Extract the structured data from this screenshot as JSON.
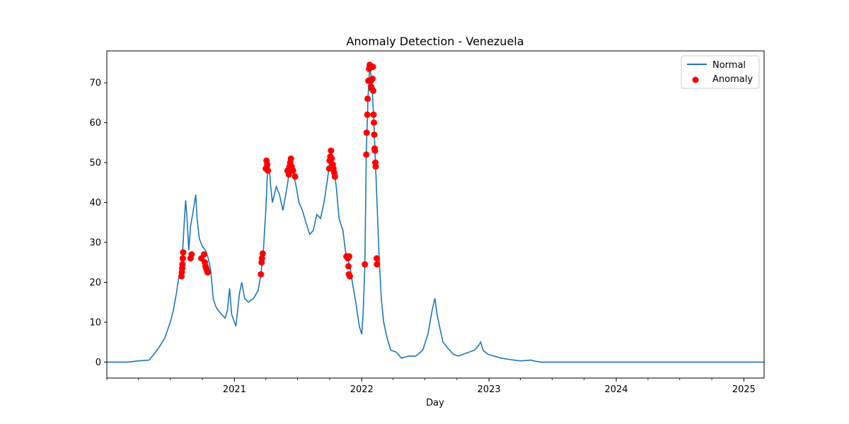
{
  "chart_data": {
    "type": "line",
    "title": "Anomaly Detection - Venezuela",
    "xlabel": "Day",
    "ylabel": "",
    "xlim": [
      "2020-01-01",
      "2025-02-28"
    ],
    "ylim": [
      -4,
      78
    ],
    "x_ticks": [
      "2021",
      "2022",
      "2023",
      "2024",
      "2025"
    ],
    "y_ticks": [
      0,
      10,
      20,
      30,
      40,
      50,
      60,
      70
    ],
    "grid": false,
    "legend": "top-right",
    "colors": {
      "normal": "#1f77b4",
      "anomaly": "#ff0000"
    },
    "series": [
      {
        "name": "Normal",
        "kind": "line",
        "points": [
          [
            "2020-01-01",
            0
          ],
          [
            "2020-03-01",
            0
          ],
          [
            "2020-04-01",
            0.3
          ],
          [
            "2020-05-01",
            0.5
          ],
          [
            "2020-05-20",
            2.5
          ],
          [
            "2020-06-01",
            4
          ],
          [
            "2020-06-15",
            6
          ],
          [
            "2020-07-01",
            10
          ],
          [
            "2020-07-10",
            13
          ],
          [
            "2020-07-18",
            17
          ],
          [
            "2020-07-25",
            21
          ],
          [
            "2020-08-01",
            24
          ],
          [
            "2020-08-05",
            27
          ],
          [
            "2020-08-10",
            35
          ],
          [
            "2020-08-14",
            40.5
          ],
          [
            "2020-08-18",
            36
          ],
          [
            "2020-08-23",
            28
          ],
          [
            "2020-08-28",
            34
          ],
          [
            "2020-09-05",
            38
          ],
          [
            "2020-09-12",
            42
          ],
          [
            "2020-09-16",
            36
          ],
          [
            "2020-09-22",
            31
          ],
          [
            "2020-10-01",
            29
          ],
          [
            "2020-10-10",
            28
          ],
          [
            "2020-10-18",
            26
          ],
          [
            "2020-10-25",
            23
          ],
          [
            "2020-11-01",
            16
          ],
          [
            "2020-11-08",
            14
          ],
          [
            "2020-11-15",
            13
          ],
          [
            "2020-11-25",
            12
          ],
          [
            "2020-12-05",
            11
          ],
          [
            "2020-12-12",
            13
          ],
          [
            "2020-12-18",
            18.5
          ],
          [
            "2020-12-24",
            12
          ],
          [
            "2021-01-01",
            10
          ],
          [
            "2021-01-05",
            9
          ],
          [
            "2021-01-15",
            17
          ],
          [
            "2021-01-22",
            20
          ],
          [
            "2021-01-30",
            16
          ],
          [
            "2021-02-10",
            15
          ],
          [
            "2021-02-25",
            16
          ],
          [
            "2021-03-10",
            18
          ],
          [
            "2021-03-18",
            22
          ],
          [
            "2021-03-25",
            28
          ],
          [
            "2021-04-01",
            38
          ],
          [
            "2021-04-06",
            48
          ],
          [
            "2021-04-10",
            50
          ],
          [
            "2021-04-15",
            44
          ],
          [
            "2021-04-20",
            40
          ],
          [
            "2021-05-01",
            44
          ],
          [
            "2021-05-10",
            42
          ],
          [
            "2021-05-20",
            38
          ],
          [
            "2021-06-01",
            44
          ],
          [
            "2021-06-08",
            48
          ],
          [
            "2021-06-12",
            50.5
          ],
          [
            "2021-06-18",
            47
          ],
          [
            "2021-06-25",
            45
          ],
          [
            "2021-07-05",
            40
          ],
          [
            "2021-07-15",
            38
          ],
          [
            "2021-07-25",
            35
          ],
          [
            "2021-08-05",
            32
          ],
          [
            "2021-08-15",
            33
          ],
          [
            "2021-08-25",
            37
          ],
          [
            "2021-09-05",
            36
          ],
          [
            "2021-09-15",
            40
          ],
          [
            "2021-09-25",
            46
          ],
          [
            "2021-10-01",
            50
          ],
          [
            "2021-10-06",
            53
          ],
          [
            "2021-10-12",
            49
          ],
          [
            "2021-10-20",
            44
          ],
          [
            "2021-10-28",
            36
          ],
          [
            "2021-11-08",
            33
          ],
          [
            "2021-11-15",
            28
          ],
          [
            "2021-11-22",
            26
          ],
          [
            "2021-11-30",
            23
          ],
          [
            "2021-12-05",
            20
          ],
          [
            "2021-12-15",
            15
          ],
          [
            "2021-12-25",
            9
          ],
          [
            "2022-01-01",
            7
          ],
          [
            "2022-01-05",
            12
          ],
          [
            "2022-01-10",
            24
          ],
          [
            "2022-01-14",
            52
          ],
          [
            "2022-01-19",
            66
          ],
          [
            "2022-01-24",
            74.5
          ],
          [
            "2022-01-30",
            70
          ],
          [
            "2022-02-04",
            62
          ],
          [
            "2022-02-08",
            53
          ],
          [
            "2022-02-14",
            40
          ],
          [
            "2022-02-20",
            26
          ],
          [
            "2022-02-26",
            16
          ],
          [
            "2022-03-05",
            10
          ],
          [
            "2022-03-15",
            6
          ],
          [
            "2022-03-25",
            3
          ],
          [
            "2022-04-10",
            2.5
          ],
          [
            "2022-04-25",
            1
          ],
          [
            "2022-05-15",
            1.5
          ],
          [
            "2022-06-05",
            1.5
          ],
          [
            "2022-06-25",
            3
          ],
          [
            "2022-07-10",
            7
          ],
          [
            "2022-07-22",
            13
          ],
          [
            "2022-07-30",
            16
          ],
          [
            "2022-08-05",
            12
          ],
          [
            "2022-08-12",
            9
          ],
          [
            "2022-08-22",
            5
          ],
          [
            "2022-09-05",
            3.5
          ],
          [
            "2022-09-20",
            2
          ],
          [
            "2022-10-05",
            1.5
          ],
          [
            "2022-10-20",
            2
          ],
          [
            "2022-11-05",
            2.5
          ],
          [
            "2022-11-20",
            3
          ],
          [
            "2022-12-01",
            4
          ],
          [
            "2022-12-08",
            5
          ],
          [
            "2022-12-15",
            3
          ],
          [
            "2022-12-28",
            2
          ],
          [
            "2023-01-15",
            1.5
          ],
          [
            "2023-02-05",
            1
          ],
          [
            "2023-03-05",
            0.6
          ],
          [
            "2023-04-01",
            0.3
          ],
          [
            "2023-05-01",
            0.5
          ],
          [
            "2023-05-15",
            0.2
          ],
          [
            "2023-06-01",
            0
          ],
          [
            "2025-02-28",
            0
          ]
        ]
      },
      {
        "name": "Anomaly",
        "kind": "scatter",
        "points": [
          [
            "2020-08-02",
            21.5
          ],
          [
            "2020-08-03",
            22.5
          ],
          [
            "2020-08-04",
            23.5
          ],
          [
            "2020-08-05",
            24.5
          ],
          [
            "2020-08-06",
            26
          ],
          [
            "2020-08-07",
            27.5
          ],
          [
            "2020-08-28",
            26
          ],
          [
            "2020-08-31",
            27
          ],
          [
            "2020-09-28",
            26
          ],
          [
            "2020-10-06",
            27
          ],
          [
            "2020-10-08",
            25
          ],
          [
            "2020-10-10",
            24
          ],
          [
            "2020-10-12",
            23.5
          ],
          [
            "2020-10-14",
            23
          ],
          [
            "2020-10-16",
            22.5
          ],
          [
            "2021-03-18",
            22
          ],
          [
            "2021-03-20",
            25
          ],
          [
            "2021-03-21",
            26
          ],
          [
            "2021-03-23",
            27.2
          ],
          [
            "2021-04-01",
            48.5
          ],
          [
            "2021-04-03",
            50.5
          ],
          [
            "2021-04-05",
            49.5
          ],
          [
            "2021-04-07",
            48
          ],
          [
            "2021-06-02",
            48
          ],
          [
            "2021-06-06",
            47
          ],
          [
            "2021-06-08",
            49
          ],
          [
            "2021-06-10",
            50
          ],
          [
            "2021-06-12",
            51
          ],
          [
            "2021-06-14",
            49
          ],
          [
            "2021-06-18",
            48
          ],
          [
            "2021-06-24",
            46.5
          ],
          [
            "2021-09-30",
            48.5
          ],
          [
            "2021-10-01",
            50.5
          ],
          [
            "2021-10-03",
            51.5
          ],
          [
            "2021-10-05",
            53
          ],
          [
            "2021-10-07",
            51
          ],
          [
            "2021-10-10",
            49.5
          ],
          [
            "2021-10-12",
            48.5
          ],
          [
            "2021-10-14",
            47.5
          ],
          [
            "2021-10-16",
            46.5
          ],
          [
            "2021-11-18",
            26.5
          ],
          [
            "2021-11-22",
            26
          ],
          [
            "2021-11-24",
            24
          ],
          [
            "2021-11-25",
            22
          ],
          [
            "2021-11-28",
            21.5
          ],
          [
            "2021-11-26",
            26.5
          ],
          [
            "2022-01-10",
            24.5
          ],
          [
            "2022-01-14",
            52
          ],
          [
            "2022-01-15",
            57.5
          ],
          [
            "2022-01-17",
            62
          ],
          [
            "2022-01-18",
            66
          ],
          [
            "2022-01-20",
            70.5
          ],
          [
            "2022-01-22",
            73.5
          ],
          [
            "2022-01-24",
            74.5
          ],
          [
            "2022-01-26",
            74
          ],
          [
            "2022-01-27",
            70.5
          ],
          [
            "2022-01-28",
            69
          ],
          [
            "2022-01-30",
            68.5
          ],
          [
            "2022-02-01",
            71
          ],
          [
            "2022-02-02",
            74
          ],
          [
            "2022-02-03",
            68
          ],
          [
            "2022-02-04",
            62
          ],
          [
            "2022-02-05",
            60
          ],
          [
            "2022-02-06",
            57
          ],
          [
            "2022-02-07",
            53.5
          ],
          [
            "2022-02-08",
            53
          ],
          [
            "2022-02-09",
            50
          ],
          [
            "2022-02-10",
            49
          ],
          [
            "2022-02-13",
            26
          ],
          [
            "2022-02-14",
            24.5
          ]
        ]
      }
    ]
  }
}
